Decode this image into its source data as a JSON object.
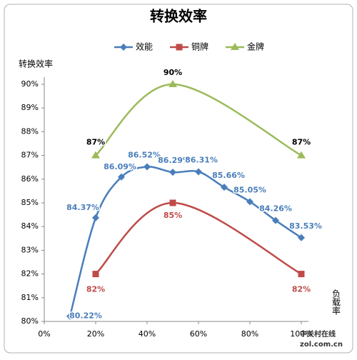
{
  "chart_data": {
    "type": "line",
    "title": "转换效率",
    "y_label": "转换效率",
    "x_label": "负载率",
    "xlim": [
      0,
      100
    ],
    "xticks": [
      {
        "value": 0,
        "label": "0%"
      },
      {
        "value": 20,
        "label": "20%"
      },
      {
        "value": 40,
        "label": "40%"
      },
      {
        "value": 60,
        "label": "60%"
      },
      {
        "value": 80,
        "label": "80%"
      },
      {
        "value": 100,
        "label": "100%"
      }
    ],
    "ylim": [
      80,
      90
    ],
    "yticks": [
      {
        "value": 80,
        "label": "80%"
      },
      {
        "value": 81,
        "label": "81%"
      },
      {
        "value": 82,
        "label": "82%"
      },
      {
        "value": 83,
        "label": "83%"
      },
      {
        "value": 84,
        "label": "84%"
      },
      {
        "value": 85,
        "label": "85%"
      },
      {
        "value": 86,
        "label": "86%"
      },
      {
        "value": 87,
        "label": "87%"
      },
      {
        "value": 88,
        "label": "88%"
      },
      {
        "value": 89,
        "label": "89%"
      },
      {
        "value": 90,
        "label": "90%"
      }
    ],
    "smooth": true,
    "series": [
      {
        "name": "效能",
        "color": "#4a7ebb",
        "marker": "diamond",
        "x": [
          10,
          20,
          30,
          40,
          50,
          60,
          70,
          80,
          90,
          100
        ],
        "values": [
          80.22,
          84.37,
          86.09,
          86.52,
          86.29,
          86.31,
          85.66,
          85.05,
          84.26,
          83.53
        ],
        "value_labels": [
          "80.22%",
          "84.37%",
          "86.09%",
          "86.52%",
          "86.29%",
          "86.31%",
          "85.66%",
          "85.05%",
          "84.26%",
          "83.53%"
        ]
      },
      {
        "name": "铜牌",
        "color": "#be4b48",
        "marker": "square",
        "x": [
          20,
          50,
          100
        ],
        "values": [
          82,
          85,
          82
        ],
        "value_labels": [
          "82%",
          "85%",
          "82%"
        ]
      },
      {
        "name": "金牌",
        "color": "#9bbb59",
        "marker": "triangle",
        "x": [
          20,
          50,
          100
        ],
        "values": [
          87,
          90,
          87
        ],
        "value_labels": [
          "87%",
          "90%",
          "87%"
        ]
      }
    ],
    "watermark": [
      "中关村在线",
      "zol.com.cn"
    ]
  }
}
